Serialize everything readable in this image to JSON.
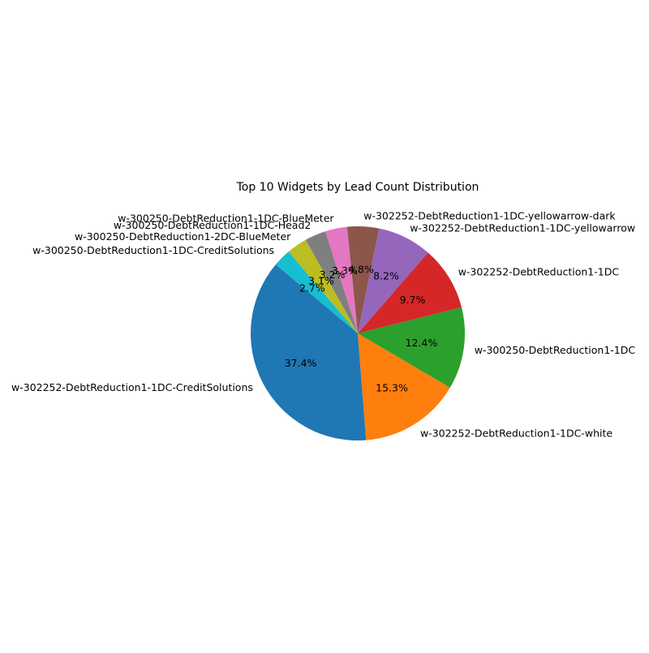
{
  "chart_data": {
    "type": "pie",
    "title": "Top 10 Widgets by Lead Count Distribution",
    "start_angle_deg": 140,
    "direction": "counterclockwise",
    "slices": [
      {
        "label": "w-302252-DebtReduction1-1DC-CreditSolutions",
        "percent": 37.4,
        "pct_label": "37.4%",
        "color": "#1f77b4"
      },
      {
        "label": "w-302252-DebtReduction1-1DC-white",
        "percent": 15.3,
        "pct_label": "15.3%",
        "color": "#ff7f0e"
      },
      {
        "label": "w-300250-DebtReduction1-1DC",
        "percent": 12.4,
        "pct_label": "12.4%",
        "color": "#2ca02c"
      },
      {
        "label": "w-302252-DebtReduction1-1DC",
        "percent": 9.7,
        "pct_label": "9.7%",
        "color": "#d62728"
      },
      {
        "label": "w-302252-DebtReduction1-1DC-yellowarrow",
        "percent": 8.2,
        "pct_label": "8.2%",
        "color": "#9467bd"
      },
      {
        "label": "w-302252-DebtReduction1-1DC-yellowarrow-dark",
        "percent": 4.8,
        "pct_label": "4.8%",
        "color": "#8c564b"
      },
      {
        "label": "w-300250-DebtReduction1-1DC-BlueMeter",
        "percent": 3.3,
        "pct_label": "3.3%",
        "color": "#e377c2"
      },
      {
        "label": "w-300250-DebtReduction1-1DC-Head2",
        "percent": 3.2,
        "pct_label": "3.2%",
        "color": "#7f7f7f"
      },
      {
        "label": "w-300250-DebtReduction1-2DC-BlueMeter",
        "percent": 3.1,
        "pct_label": "3.1%",
        "color": "#bcbd22"
      },
      {
        "label": "w-300250-DebtReduction1-1DC-CreditSolutions",
        "percent": 2.7,
        "pct_label": "2.7%",
        "color": "#17becf"
      }
    ]
  }
}
